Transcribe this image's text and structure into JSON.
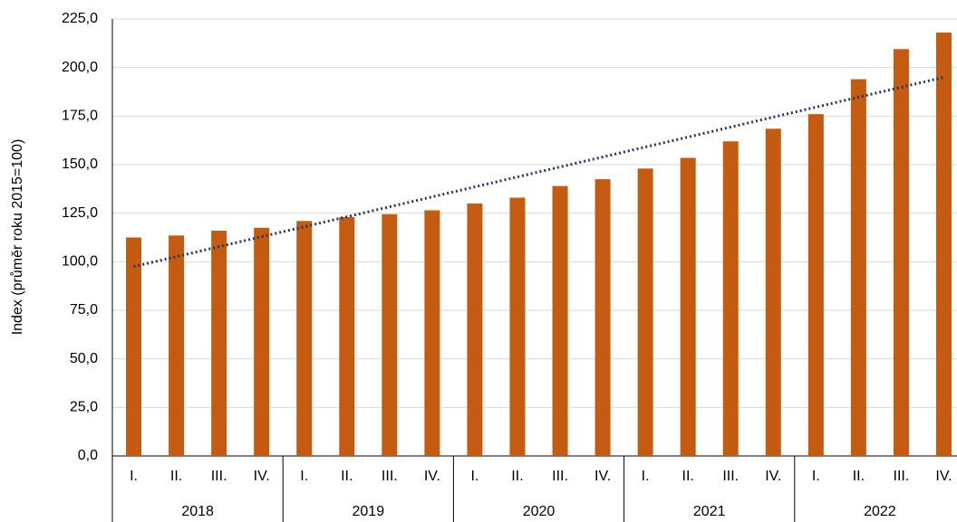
{
  "chart_data": {
    "type": "bar",
    "y_label": "Index (průměr roku 2015=100)",
    "categories": [
      "I.",
      "II.",
      "III.",
      "IV.",
      "I.",
      "II.",
      "III.",
      "IV.",
      "I.",
      "II.",
      "III.",
      "IV.",
      "I.",
      "II.",
      "III.",
      "IV.",
      "I.",
      "II.",
      "III.",
      "IV."
    ],
    "groups": [
      "2018",
      "2019",
      "2020",
      "2021",
      "2022"
    ],
    "values": [
      112.5,
      113.5,
      116,
      117.5,
      121,
      123,
      124.5,
      126.5,
      130,
      133,
      139,
      142.5,
      148,
      153.5,
      162,
      168.5,
      176,
      194,
      209.5,
      218
    ],
    "color": "#c55a11",
    "trendline": {
      "start": 97.5,
      "end": 195,
      "color": "#1f3864"
    },
    "ylim": [
      0,
      225
    ],
    "yticks": [
      {
        "value": 0,
        "label": "0,0"
      },
      {
        "value": 25,
        "label": "25,0"
      },
      {
        "value": 50,
        "label": "50,0"
      },
      {
        "value": 75,
        "label": "75,0"
      },
      {
        "value": 100,
        "label": "100,0"
      },
      {
        "value": 125,
        "label": "125,0"
      },
      {
        "value": 150,
        "label": "150,0"
      },
      {
        "value": 175,
        "label": "175,0"
      },
      {
        "value": 200,
        "label": "200,0"
      },
      {
        "value": 225,
        "label": "225,0"
      }
    ],
    "grid": true
  }
}
